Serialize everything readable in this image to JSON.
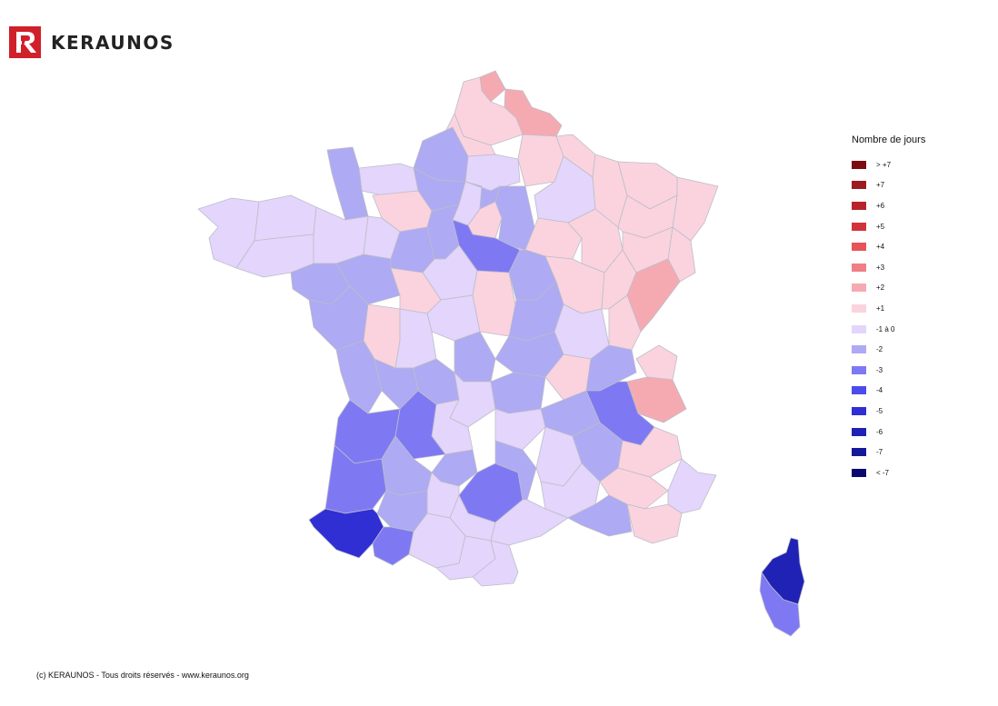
{
  "brand": {
    "name": "KERAUNOS",
    "mark_color": "#d0202a"
  },
  "legend": {
    "title": "Nombre de jours",
    "items": [
      {
        "label": "> +7",
        "color": "#7a0c12"
      },
      {
        "label": "+7",
        "color": "#9c1a20"
      },
      {
        "label": "+6",
        "color": "#b8242b"
      },
      {
        "label": "+5",
        "color": "#d2333a"
      },
      {
        "label": "+4",
        "color": "#e8535a"
      },
      {
        "label": "+3",
        "color": "#ef7f86"
      },
      {
        "label": "+2",
        "color": "#f5aab2"
      },
      {
        "label": "+1",
        "color": "#fad3df"
      },
      {
        "label": "-1 à 0",
        "color": "#e3d5fb"
      },
      {
        "label": "-2",
        "color": "#aeaaf3"
      },
      {
        "label": "-3",
        "color": "#7e79f3"
      },
      {
        "label": "-4",
        "color": "#4b4bec"
      },
      {
        "label": "-5",
        "color": "#2f2fd4"
      },
      {
        "label": "-6",
        "color": "#1f22b5"
      },
      {
        "label": "-7",
        "color": "#151898"
      },
      {
        "label": "< -7",
        "color": "#0a0a6e"
      }
    ]
  },
  "footer": {
    "text": "(c) KERAUNOS - Tous droits réservés - www.keraunos.org"
  }
}
